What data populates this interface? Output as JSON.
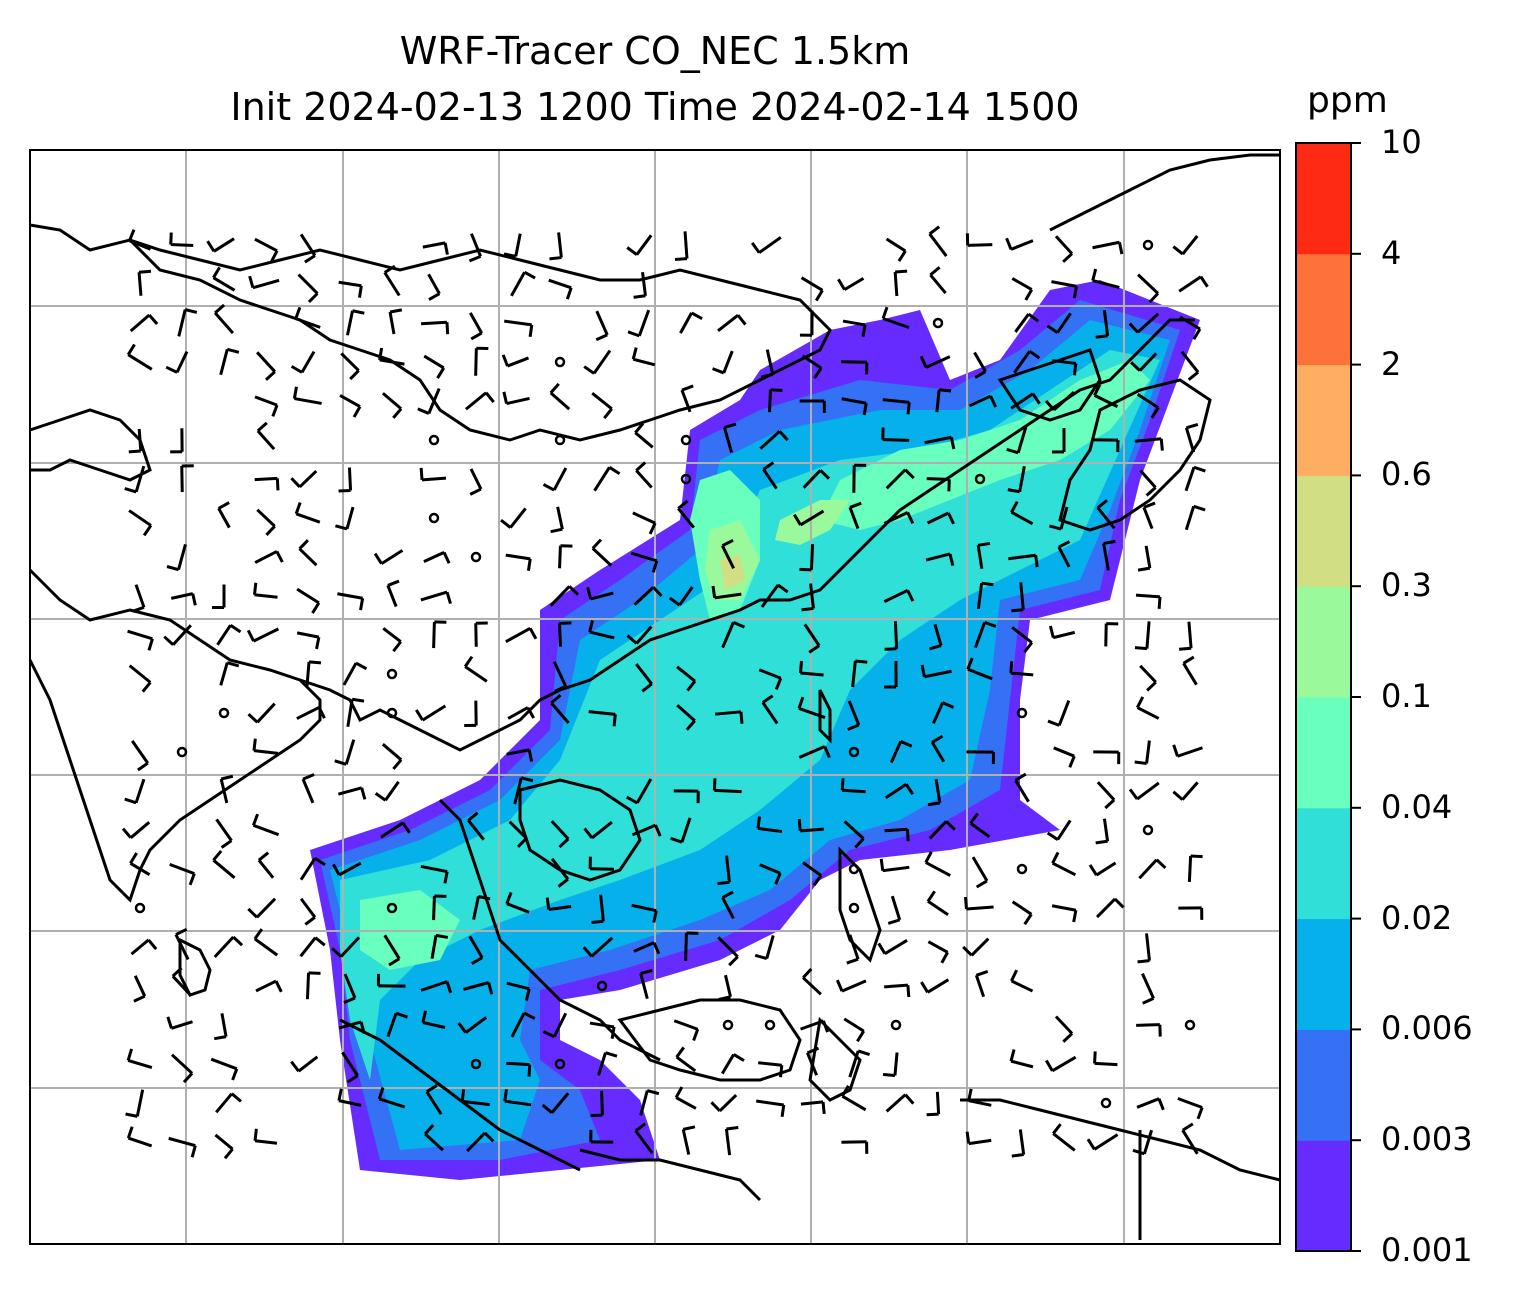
{
  "title": {
    "line1": "WRF-Tracer CO_NEC 1.5km",
    "line2": "Init 2024-02-13 1200 Time 2024-02-14 1500"
  },
  "colorbar": {
    "unit": "ppm",
    "levels": [
      "0.001",
      "0.003",
      "0.006",
      "0.02",
      "0.04",
      "0.1",
      "0.3",
      "0.6",
      "2",
      "4",
      "10"
    ],
    "colors": [
      "#652bff",
      "#3471f4",
      "#06b0ea",
      "#2fdfd8",
      "#68ffbf",
      "#9af99a",
      "#d2de84",
      "#ffad62",
      "#ff713b",
      "#ff2a14"
    ]
  },
  "legend_colors": {
    "gridline": "#b0b0b0",
    "coastline": "#000000",
    "wind_barb": "#000000"
  },
  "chart_data": {
    "type": "map",
    "field": "CO_NEC tracer concentration",
    "units": "ppm",
    "scale": "discrete log-like contour levels",
    "overlays": [
      "coastlines",
      "country borders",
      "wind barbs",
      "lat/lon grid"
    ],
    "grid": true
  }
}
